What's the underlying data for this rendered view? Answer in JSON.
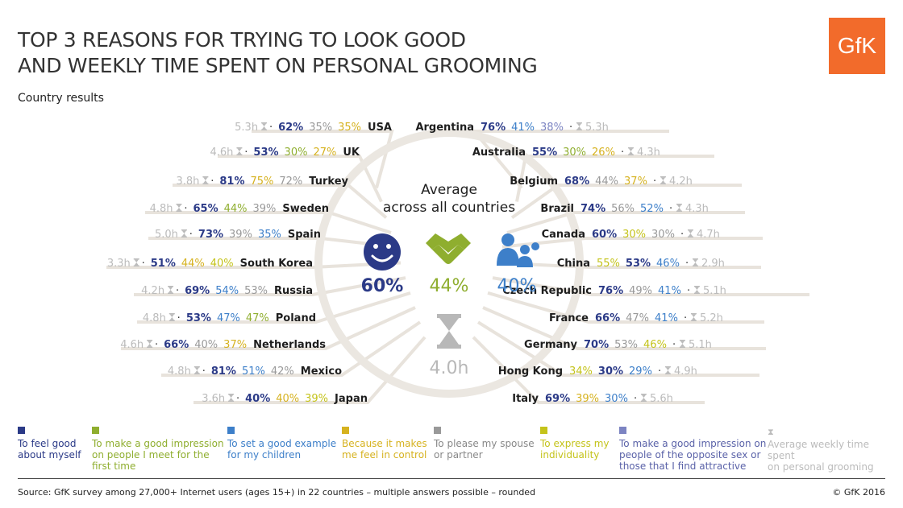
{
  "title_line1": "TOP 3 REASONS FOR TRYING TO LOOK GOOD",
  "title_line2": "AND WEEKLY TIME SPENT ON PERSONAL GROOMING",
  "subtitle": "Country results",
  "logo_text": "GfK",
  "source": "Source: GfK survey among 27,000+ Internet users (ages 15+) in 22 countries – multiple answers possible – rounded",
  "copyright": "© GfK 2016",
  "center": {
    "heading_line1": "Average",
    "heading_line2": "across all countries",
    "icons": [
      "smiley-icon",
      "handshake-icon",
      "family-icon",
      "hourglass-icon"
    ]
  },
  "legend": [
    {
      "key": "feel_good",
      "line1": "To feel good",
      "line2": "about myself",
      "line3": "",
      "color": "#2b3a87",
      "text_color": "#2b3a87"
    },
    {
      "key": "impression",
      "line1": "To make a good impression",
      "line2": "on people I meet for the",
      "line3": "first time",
      "color": "#8fae2f",
      "text_color": "#8fae2f"
    },
    {
      "key": "example",
      "line1": "To set a good example",
      "line2": "for my children",
      "line3": "",
      "color": "#3d7fc9",
      "text_color": "#3d7fc9"
    },
    {
      "key": "control",
      "line1": "Because it makes",
      "line2": "me feel in control",
      "line3": "",
      "color": "#d6b21f",
      "text_color": "#d6b21f"
    },
    {
      "key": "spouse",
      "line1": "To please my spouse",
      "line2": "or partner",
      "line3": "",
      "color": "#999999",
      "text_color": "#888888"
    },
    {
      "key": "individuality",
      "line1": "To express my",
      "line2": "individuality",
      "line3": "",
      "color": "#c4c31a",
      "text_color": "#c4c31a"
    },
    {
      "key": "opposite_sex",
      "line1": "To make a good impression on",
      "line2": "people of the opposite sex or",
      "line3": "those that I find attractive",
      "color": "#7c84c2",
      "text_color": "#5a62a8"
    },
    {
      "key": "grooming",
      "line1": "Average weekly time spent",
      "line2": "on personal grooming",
      "line3": "",
      "color": "#bbbbbb",
      "text_color": "#bbbbbb"
    }
  ],
  "colors": {
    "feel_good": "#2b3a87",
    "impression": "#8fae2f",
    "example": "#3d7fc9",
    "control": "#d6b21f",
    "spouse": "#999999",
    "individuality": "#c4c31a",
    "opposite_sex": "#7c84c2",
    "grooming": "#bbbbbb",
    "spoke": "#e8e3dc",
    "circle": "#ebe7e1"
  },
  "chart_data": {
    "type": "table",
    "average": {
      "values": [
        {
          "reason": "feel_good",
          "value": "60%"
        },
        {
          "reason": "impression",
          "value": "44%"
        },
        {
          "reason": "example",
          "value": "40%"
        }
      ],
      "hours": "4.0h"
    },
    "left": [
      {
        "country": "USA",
        "hours": "5.3h",
        "values": [
          {
            "reason": "feel_good",
            "value": "62%"
          },
          {
            "reason": "spouse",
            "value": "35%"
          },
          {
            "reason": "control",
            "value": "35%"
          }
        ]
      },
      {
        "country": "UK",
        "hours": "4.6h",
        "values": [
          {
            "reason": "feel_good",
            "value": "53%"
          },
          {
            "reason": "impression",
            "value": "30%"
          },
          {
            "reason": "control",
            "value": "27%"
          }
        ]
      },
      {
        "country": "Turkey",
        "hours": "3.8h",
        "values": [
          {
            "reason": "feel_good",
            "value": "81%"
          },
          {
            "reason": "control",
            "value": "75%"
          },
          {
            "reason": "spouse",
            "value": "72%"
          }
        ]
      },
      {
        "country": "Sweden",
        "hours": "4.8h",
        "values": [
          {
            "reason": "feel_good",
            "value": "65%"
          },
          {
            "reason": "impression",
            "value": "44%"
          },
          {
            "reason": "spouse",
            "value": "39%"
          }
        ]
      },
      {
        "country": "Spain",
        "hours": "5.0h",
        "values": [
          {
            "reason": "feel_good",
            "value": "73%"
          },
          {
            "reason": "spouse",
            "value": "39%"
          },
          {
            "reason": "example",
            "value": "35%"
          }
        ]
      },
      {
        "country": "South Korea",
        "hours": "3.3h",
        "values": [
          {
            "reason": "feel_good",
            "value": "51%"
          },
          {
            "reason": "control",
            "value": "44%"
          },
          {
            "reason": "individuality",
            "value": "40%"
          }
        ]
      },
      {
        "country": "Russia",
        "hours": "4.2h",
        "values": [
          {
            "reason": "feel_good",
            "value": "69%"
          },
          {
            "reason": "example",
            "value": "54%"
          },
          {
            "reason": "spouse",
            "value": "53%"
          }
        ]
      },
      {
        "country": "Poland",
        "hours": "4.8h",
        "values": [
          {
            "reason": "feel_good",
            "value": "53%"
          },
          {
            "reason": "example",
            "value": "47%"
          },
          {
            "reason": "impression",
            "value": "47%"
          }
        ]
      },
      {
        "country": "Netherlands",
        "hours": "4.6h",
        "values": [
          {
            "reason": "feel_good",
            "value": "66%"
          },
          {
            "reason": "spouse",
            "value": "40%"
          },
          {
            "reason": "control",
            "value": "37%"
          }
        ]
      },
      {
        "country": "Mexico",
        "hours": "4.8h",
        "values": [
          {
            "reason": "feel_good",
            "value": "81%"
          },
          {
            "reason": "example",
            "value": "51%"
          },
          {
            "reason": "spouse",
            "value": "42%"
          }
        ]
      },
      {
        "country": "Japan",
        "hours": "3.6h",
        "values": [
          {
            "reason": "feel_good",
            "value": "40%"
          },
          {
            "reason": "control",
            "value": "40%"
          },
          {
            "reason": "individuality",
            "value": "39%"
          }
        ]
      }
    ],
    "right": [
      {
        "country": "Argentina",
        "hours": "5.3h",
        "values": [
          {
            "reason": "feel_good",
            "value": "76%"
          },
          {
            "reason": "example",
            "value": "41%"
          },
          {
            "reason": "opposite_sex",
            "value": "38%"
          }
        ]
      },
      {
        "country": "Australia",
        "hours": "4.3h",
        "values": [
          {
            "reason": "feel_good",
            "value": "55%"
          },
          {
            "reason": "impression",
            "value": "30%"
          },
          {
            "reason": "control",
            "value": "26%"
          }
        ]
      },
      {
        "country": "Belgium",
        "hours": "4.2h",
        "values": [
          {
            "reason": "feel_good",
            "value": "68%"
          },
          {
            "reason": "spouse",
            "value": "44%"
          },
          {
            "reason": "control",
            "value": "37%"
          }
        ]
      },
      {
        "country": "Brazil",
        "hours": "4.3h",
        "values": [
          {
            "reason": "feel_good",
            "value": "74%"
          },
          {
            "reason": "spouse",
            "value": "56%"
          },
          {
            "reason": "example",
            "value": "52%"
          }
        ]
      },
      {
        "country": "Canada",
        "hours": "4.7h",
        "values": [
          {
            "reason": "feel_good",
            "value": "60%"
          },
          {
            "reason": "individuality",
            "value": "30%"
          },
          {
            "reason": "spouse",
            "value": "30%"
          }
        ]
      },
      {
        "country": "China",
        "hours": "2.9h",
        "values": [
          {
            "reason": "individuality",
            "value": "55%"
          },
          {
            "reason": "feel_good",
            "value": "53%"
          },
          {
            "reason": "example",
            "value": "46%"
          }
        ]
      },
      {
        "country": "Czech Republic",
        "hours": "5.1h",
        "values": [
          {
            "reason": "feel_good",
            "value": "76%"
          },
          {
            "reason": "spouse",
            "value": "49%"
          },
          {
            "reason": "example",
            "value": "41%"
          }
        ]
      },
      {
        "country": "France",
        "hours": "5.2h",
        "values": [
          {
            "reason": "feel_good",
            "value": "66%"
          },
          {
            "reason": "spouse",
            "value": "47%"
          },
          {
            "reason": "example",
            "value": "41%"
          }
        ]
      },
      {
        "country": "Germany",
        "hours": "5.1h",
        "values": [
          {
            "reason": "feel_good",
            "value": "70%"
          },
          {
            "reason": "spouse",
            "value": "53%"
          },
          {
            "reason": "individuality",
            "value": "46%"
          }
        ]
      },
      {
        "country": "Hong Kong",
        "hours": "4.9h",
        "values": [
          {
            "reason": "individuality",
            "value": "34%"
          },
          {
            "reason": "feel_good",
            "value": "30%"
          },
          {
            "reason": "example",
            "value": "29%"
          }
        ]
      },
      {
        "country": "Italy",
        "hours": "5.6h",
        "values": [
          {
            "reason": "feel_good",
            "value": "69%"
          },
          {
            "reason": "control",
            "value": "39%"
          },
          {
            "reason": "example",
            "value": "30%"
          }
        ]
      }
    ]
  }
}
